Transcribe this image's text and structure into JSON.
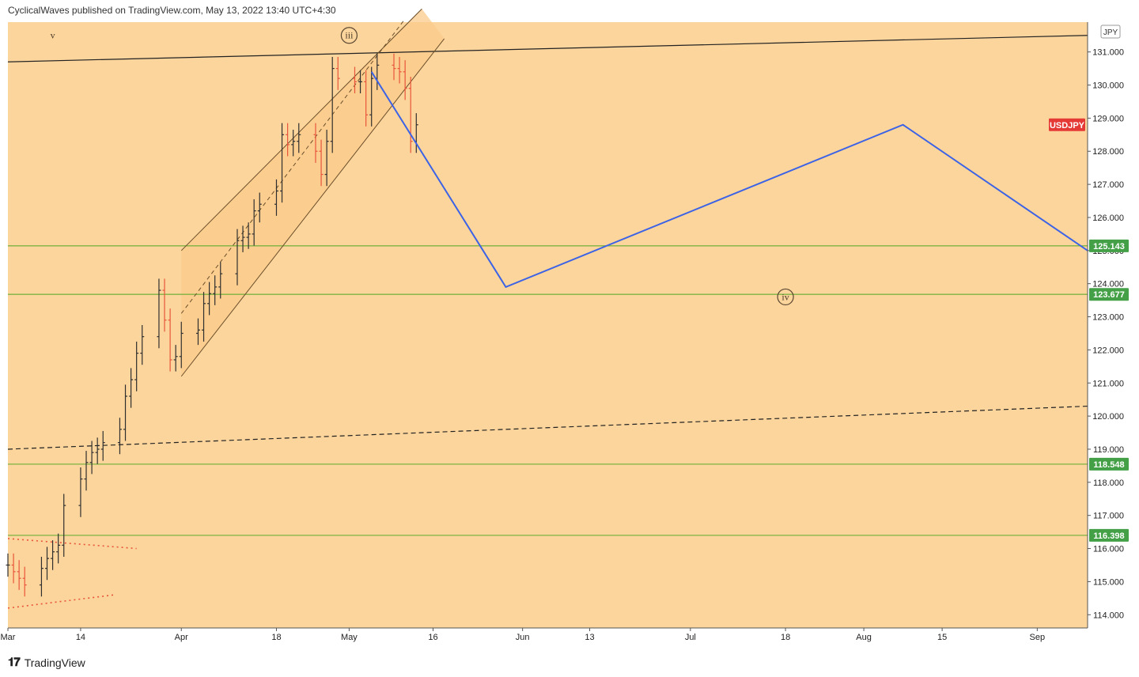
{
  "header": {
    "published_text": "CyclicalWaves published on TradingView.com, May 13, 2022 13:40 UTC+4:30"
  },
  "footer": {
    "brand": "TradingView",
    "logo_icon": "tradingview-logo-icon"
  },
  "colors": {
    "chart_background": "#fcd59c",
    "channel_fill": "#fbc98b",
    "candle_up": "#2f2f2f",
    "candle_down": "#e8553b",
    "projection_line": "#3c63e6",
    "support_line": "#7cb342",
    "price_tag_green": "#43a047",
    "symbol_tag_red": "#e53935"
  },
  "chart_data": {
    "type": "line",
    "symbol": "USDJPY",
    "currency": "JPY",
    "ylim": [
      113.6,
      131.9
    ],
    "y_ticks": [
      114.0,
      115.0,
      116.0,
      117.0,
      118.0,
      119.0,
      120.0,
      121.0,
      122.0,
      123.0,
      124.0,
      125.0,
      126.0,
      127.0,
      128.0,
      129.0,
      130.0,
      131.0
    ],
    "x_ticks": [
      "Mar",
      "14",
      "Apr",
      "18",
      "May",
      "16",
      "Jun",
      "13",
      "Jul",
      "18",
      "Aug",
      "15",
      "Sep"
    ],
    "x_range": [
      "2022-03-01",
      "2022-09-10"
    ],
    "tick_dates": [
      "2022-03-01",
      "2022-03-14",
      "2022-04-01",
      "2022-04-18",
      "2022-05-01",
      "2022-05-16",
      "2022-06-01",
      "2022-06-13",
      "2022-07-01",
      "2022-07-18",
      "2022-08-01",
      "2022-08-15",
      "2022-09-01"
    ],
    "price_series": {
      "dates": [
        "2022-03-01",
        "2022-03-02",
        "2022-03-03",
        "2022-03-04",
        "2022-03-07",
        "2022-03-08",
        "2022-03-09",
        "2022-03-10",
        "2022-03-11",
        "2022-03-14",
        "2022-03-15",
        "2022-03-16",
        "2022-03-17",
        "2022-03-18",
        "2022-03-21",
        "2022-03-22",
        "2022-03-23",
        "2022-03-24",
        "2022-03-25",
        "2022-03-28",
        "2022-03-29",
        "2022-03-30",
        "2022-03-31",
        "2022-04-01",
        "2022-04-04",
        "2022-04-05",
        "2022-04-06",
        "2022-04-07",
        "2022-04-08",
        "2022-04-11",
        "2022-04-12",
        "2022-04-13",
        "2022-04-14",
        "2022-04-15",
        "2022-04-18",
        "2022-04-19",
        "2022-04-20",
        "2022-04-21",
        "2022-04-22",
        "2022-04-25",
        "2022-04-26",
        "2022-04-27",
        "2022-04-28",
        "2022-04-29",
        "2022-05-02",
        "2022-05-03",
        "2022-05-04",
        "2022-05-05",
        "2022-05-06",
        "2022-05-09",
        "2022-05-10",
        "2022-05-11",
        "2022-05-12",
        "2022-05-13"
      ],
      "close": [
        115.5,
        115.3,
        115.1,
        114.9,
        115.4,
        115.7,
        115.9,
        116.1,
        117.3,
        118.1,
        118.6,
        118.9,
        119.0,
        119.2,
        119.6,
        120.6,
        121.1,
        121.9,
        122.4,
        123.8,
        122.9,
        121.7,
        121.8,
        122.5,
        122.6,
        123.4,
        123.7,
        123.9,
        124.3,
        125.3,
        125.4,
        125.5,
        126.2,
        126.4,
        126.8,
        128.5,
        128.2,
        128.3,
        128.5,
        128.0,
        127.3,
        128.3,
        130.5,
        130.2,
        130.1,
        130.1,
        129.1,
        130.2,
        130.6,
        130.5,
        130.4,
        129.9,
        128.3,
        128.8
      ]
    },
    "series": [
      {
        "values": [
          {
            "x": "2022-05-05",
            "y": 130.4
          },
          {
            "x": "2022-05-29",
            "y": 123.9
          },
          {
            "x": "2022-08-08",
            "y": 128.8
          },
          {
            "x": "2022-09-10",
            "y": 125.0
          }
        ]
      }
    ],
    "horizontal_levels": [
      125.143,
      123.677,
      118.548,
      116.398
    ],
    "trendlines": [
      {
        "style": "solid",
        "from": {
          "x": "2022-03-01",
          "y": 130.7
        },
        "to": {
          "x": "2022-09-10",
          "y": 131.5
        }
      },
      {
        "style": "dashed",
        "from": {
          "x": "2022-03-01",
          "y": 119.0
        },
        "to": {
          "x": "2022-09-10",
          "y": 120.3
        }
      },
      {
        "style": "dotted",
        "from": {
          "x": "2022-03-01",
          "y": 116.3
        },
        "to": {
          "x": "2022-03-24",
          "y": 116.0
        }
      },
      {
        "style": "dotted",
        "from": {
          "x": "2022-03-01",
          "y": 114.2
        },
        "to": {
          "x": "2022-03-20",
          "y": 114.6
        }
      }
    ],
    "channel": {
      "upper": {
        "from": {
          "x": "2022-04-01",
          "y": 125.0
        },
        "to": {
          "x": "2022-05-14",
          "y": 132.3
        }
      },
      "mid": {
        "from": {
          "x": "2022-04-01",
          "y": 123.1
        },
        "to": {
          "x": "2022-05-11",
          "y": 132.0
        }
      },
      "lower": {
        "from": {
          "x": "2022-04-01",
          "y": 121.2
        },
        "to": {
          "x": "2022-05-18",
          "y": 131.4
        }
      }
    },
    "annotations": [
      {
        "text": "v",
        "x": "2022-03-09",
        "y": 131.5,
        "circled": false
      },
      {
        "text": "iii",
        "x": "2022-05-01",
        "y": 131.5,
        "circled": true
      },
      {
        "text": "iv",
        "x": "2022-07-18",
        "y": 123.6,
        "circled": true
      }
    ],
    "price_tags": [
      {
        "label": "USDJPY",
        "value": 128.8,
        "color": "red"
      },
      {
        "label": "125.143",
        "value": 125.143,
        "color": "green"
      },
      {
        "label": "123.677",
        "value": 123.677,
        "color": "green"
      },
      {
        "label": "118.548",
        "value": 118.548,
        "color": "green"
      },
      {
        "label": "116.398",
        "value": 116.398,
        "color": "green"
      }
    ]
  }
}
